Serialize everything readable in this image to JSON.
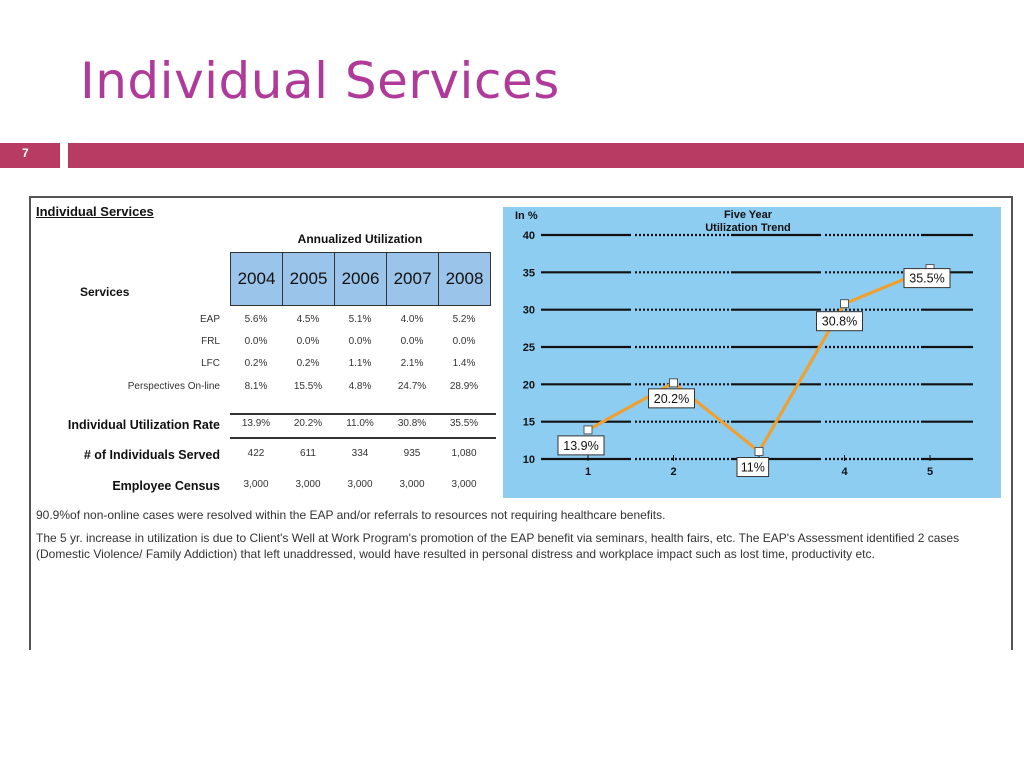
{
  "slide": {
    "title": "Individual Services",
    "number": "7"
  },
  "table": {
    "heading": "Individual Services",
    "annual_title": "Annualized Utilization",
    "services_label": "Services",
    "years": [
      "2004",
      "2005",
      "2006",
      "2007",
      "2008"
    ],
    "service_rows": [
      {
        "label": "EAP",
        "values": [
          "5.6%",
          "4.5%",
          "5.1%",
          "4.0%",
          "5.2%"
        ]
      },
      {
        "label": "FRL",
        "values": [
          "0.0%",
          "0.0%",
          "0.0%",
          "0.0%",
          "0.0%"
        ]
      },
      {
        "label": "LFC",
        "values": [
          "0.2%",
          "0.2%",
          "1.1%",
          "2.1%",
          "1.4%"
        ]
      },
      {
        "label": "Perspectives On-line",
        "values": [
          "8.1%",
          "15.5%",
          "4.8%",
          "24.7%",
          "28.9%"
        ]
      }
    ],
    "summary_rows": [
      {
        "label": "Individual Utilization Rate",
        "values": [
          "13.9%",
          "20.2%",
          "11.0%",
          "30.8%",
          "35.5%"
        ]
      },
      {
        "label": "# of Individuals Served",
        "values": [
          "422",
          "611",
          "334",
          "935",
          "1,080"
        ]
      },
      {
        "label": "Employee Census",
        "values": [
          "3,000",
          "3,000",
          "3,000",
          "3,000",
          "3,000"
        ]
      }
    ]
  },
  "notes": [
    "90.9%of non-online cases were resolved within the EAP and/or referrals to resources not requiring healthcare benefits.",
    "The 5 yr. increase in utilization is due to Client's Well at Work Program's promotion of the EAP benefit via seminars, health fairs, etc. The EAP's Assessment identified 2 cases (Domestic Violence/ Family Addiction) that left unaddressed, would have resulted in personal distress and workplace impact such as lost time, productivity etc."
  ],
  "chart_data": {
    "type": "line",
    "title": "Five Year Utilization Trend",
    "ylabel": "In %",
    "x": [
      1,
      2,
      3,
      4,
      5
    ],
    "xticks": [
      "1",
      "2",
      "3",
      "4",
      "5"
    ],
    "ylim": [
      10,
      40
    ],
    "yticks": [
      10,
      15,
      20,
      25,
      30,
      35,
      40
    ],
    "grid": true,
    "series": [
      {
        "values": [
          13.9,
          20.2,
          11,
          30.8,
          35.5
        ],
        "labels": [
          "13.9%",
          "20.2%",
          "11%",
          "30.8%",
          "35.5%"
        ]
      }
    ],
    "colors": {
      "background": "#8ecdf2",
      "line": "#f0a030",
      "gridline": "#111111",
      "marker": "#ffffff"
    }
  },
  "colors": {
    "title": "#b03a9a",
    "accent_bar": "#b83b63",
    "year_header": "#9bc4ea"
  }
}
